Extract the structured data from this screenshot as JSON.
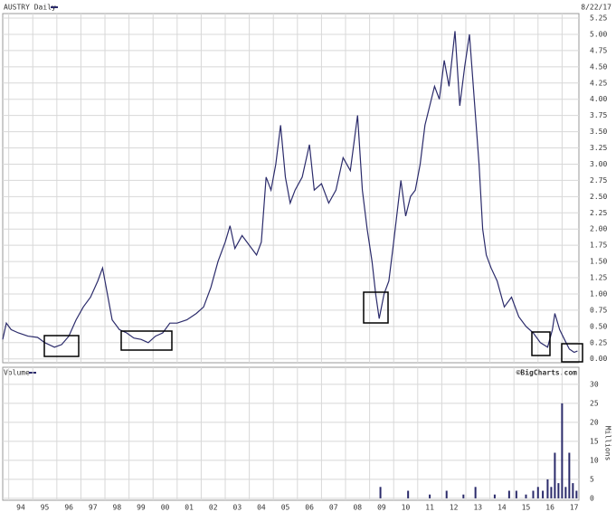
{
  "chart_data": [
    {
      "type": "line",
      "title": "AUSTRY Daily",
      "date": "8/22/17",
      "color": "#2b2b6b",
      "x": [
        1993.75,
        1993.9,
        1994.1,
        1994.4,
        1994.8,
        1995.2,
        1995.5,
        1995.9,
        1996.2,
        1996.5,
        1996.8,
        1997.1,
        1997.4,
        1997.7,
        1997.9,
        1998.1,
        1998.3,
        1998.6,
        1998.9,
        1999.2,
        1999.5,
        1999.8,
        2000.1,
        2000.4,
        2000.7,
        2001.0,
        2001.4,
        2001.8,
        2002.1,
        2002.4,
        2002.7,
        2003.0,
        2003.2,
        2003.4,
        2003.7,
        2004.0,
        2004.3,
        2004.5,
        2004.7,
        2004.9,
        2005.1,
        2005.3,
        2005.5,
        2005.7,
        2005.9,
        2006.2,
        2006.5,
        2006.7,
        2007.0,
        2007.3,
        2007.6,
        2007.9,
        2008.2,
        2008.5,
        2008.7,
        2008.9,
        2009.1,
        2009.25,
        2009.4,
        2009.6,
        2009.8,
        2010.0,
        2010.3,
        2010.5,
        2010.7,
        2010.9,
        2011.1,
        2011.3,
        2011.5,
        2011.7,
        2011.9,
        2012.1,
        2012.3,
        2012.55,
        2012.75,
        2012.95,
        2013.15,
        2013.35,
        2013.55,
        2013.7,
        2013.85,
        2014.05,
        2014.3,
        2014.6,
        2014.9,
        2015.2,
        2015.5,
        2015.8,
        2016.1,
        2016.4,
        2016.6,
        2016.7,
        2016.9,
        2017.1,
        2017.3,
        2017.5,
        2017.64
      ],
      "values": [
        0.3,
        0.55,
        0.45,
        0.4,
        0.35,
        0.33,
        0.25,
        0.18,
        0.22,
        0.35,
        0.6,
        0.8,
        0.95,
        1.2,
        1.4,
        1.0,
        0.6,
        0.45,
        0.4,
        0.32,
        0.3,
        0.25,
        0.35,
        0.4,
        0.55,
        0.55,
        0.6,
        0.7,
        0.8,
        1.1,
        1.5,
        1.8,
        2.05,
        1.7,
        1.9,
        1.75,
        1.6,
        1.8,
        2.8,
        2.6,
        3.0,
        3.6,
        2.8,
        2.4,
        2.6,
        2.8,
        3.3,
        2.6,
        2.7,
        2.4,
        2.6,
        3.1,
        2.9,
        3.75,
        2.6,
        2.0,
        1.5,
        1.0,
        0.62,
        1.0,
        1.2,
        1.8,
        2.75,
        2.2,
        2.5,
        2.6,
        3.0,
        3.6,
        3.9,
        4.2,
        4.0,
        4.6,
        4.2,
        5.05,
        3.9,
        4.5,
        5.0,
        4.0,
        3.0,
        2.0,
        1.6,
        1.4,
        1.2,
        0.8,
        0.95,
        0.65,
        0.5,
        0.4,
        0.25,
        0.18,
        0.45,
        0.7,
        0.45,
        0.3,
        0.15,
        0.1,
        0.12
      ],
      "xlim": [
        1993.75,
        2017.7
      ],
      "ylim": [
        -0.06,
        5.32
      ],
      "yticks": [
        {
          "value": 0,
          "label": "0.00"
        },
        {
          "value": 0.25,
          "label": "0.25"
        },
        {
          "value": 0.5,
          "label": "0.50"
        },
        {
          "value": 0.75,
          "label": "0.75"
        },
        {
          "value": 1,
          "label": "1.00"
        },
        {
          "value": 1.25,
          "label": "1.25"
        },
        {
          "value": 1.5,
          "label": "1.50"
        },
        {
          "value": 1.75,
          "label": "1.75"
        },
        {
          "value": 2,
          "label": "2.00"
        },
        {
          "value": 2.25,
          "label": "2.25"
        },
        {
          "value": 2.5,
          "label": "2.50"
        },
        {
          "value": 2.75,
          "label": "2.75"
        },
        {
          "value": 3,
          "label": "3.00"
        },
        {
          "value": 3.25,
          "label": "3.25"
        },
        {
          "value": 3.5,
          "label": "3.50"
        },
        {
          "value": 3.75,
          "label": "3.75"
        },
        {
          "value": 4,
          "label": "4.00"
        },
        {
          "value": 4.25,
          "label": "4.25"
        },
        {
          "value": 4.5,
          "label": "4.50"
        },
        {
          "value": 4.75,
          "label": "4.75"
        },
        {
          "value": 5,
          "label": "5.00"
        },
        {
          "value": 5.25,
          "label": "5.25"
        }
      ],
      "grid": true
    },
    {
      "type": "bar",
      "title": "Volume",
      "source": "©BigCharts.com",
      "y_label": "Millions",
      "color": "#2b2b6b",
      "x": [
        2009.45,
        2010.6,
        2011.5,
        2012.2,
        2012.9,
        2013.4,
        2014.2,
        2014.8,
        2015.1,
        2015.5,
        2015.8,
        2016.0,
        2016.2,
        2016.4,
        2016.55,
        2016.7,
        2016.85,
        2017.0,
        2017.15,
        2017.3,
        2017.45,
        2017.6
      ],
      "values": [
        3,
        2,
        1,
        2,
        1,
        3,
        1,
        2,
        2,
        1,
        2,
        3,
        2,
        5,
        3,
        12,
        4,
        25,
        3,
        12,
        4,
        2
      ],
      "xlim": [
        1993.75,
        2017.7
      ],
      "ylim": [
        -0.5,
        34.5
      ],
      "yticks": [
        0,
        5,
        10,
        15,
        20,
        25,
        30
      ],
      "xticks": [
        {
          "value": 1994,
          "label": "94"
        },
        {
          "value": 1995,
          "label": "95"
        },
        {
          "value": 1996,
          "label": "96"
        },
        {
          "value": 1997,
          "label": "97"
        },
        {
          "value": 1998,
          "label": "98"
        },
        {
          "value": 1999,
          "label": "99"
        },
        {
          "value": 2000,
          "label": "00"
        },
        {
          "value": 2001,
          "label": "01"
        },
        {
          "value": 2002,
          "label": "02"
        },
        {
          "value": 2003,
          "label": "03"
        },
        {
          "value": 2004,
          "label": "04"
        },
        {
          "value": 2005,
          "label": "05"
        },
        {
          "value": 2006,
          "label": "06"
        },
        {
          "value": 2007,
          "label": "07"
        },
        {
          "value": 2008,
          "label": "08"
        },
        {
          "value": 2009,
          "label": "09"
        },
        {
          "value": 2010,
          "label": "10"
        },
        {
          "value": 2011,
          "label": "11"
        },
        {
          "value": 2012,
          "label": "12"
        },
        {
          "value": 2013,
          "label": "13"
        },
        {
          "value": 2014,
          "label": "14"
        },
        {
          "value": 2015,
          "label": "15"
        },
        {
          "value": 2016,
          "label": "16"
        },
        {
          "value": 2017,
          "label": "17"
        }
      ],
      "grid": true
    }
  ]
}
